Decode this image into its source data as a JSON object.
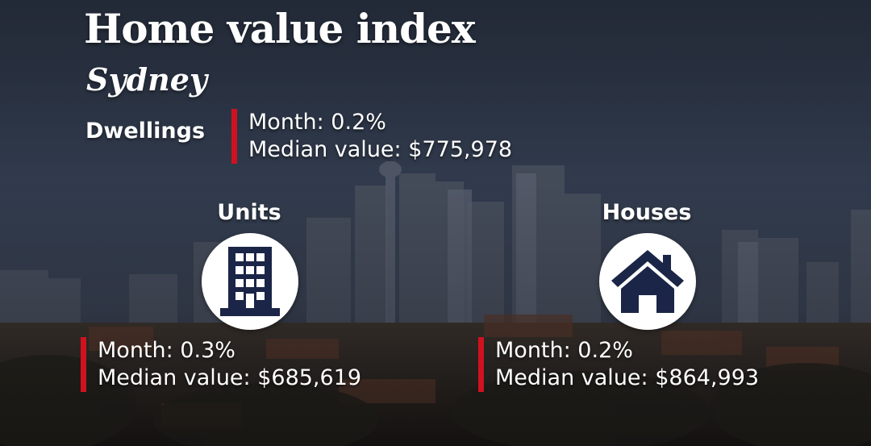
{
  "title": "Home value index",
  "subtitle": "Sydney",
  "dwellings": {
    "label": "Dwellings",
    "month": "Month: 0.2%",
    "median": "Median value: $775,978"
  },
  "units": {
    "label": "Units",
    "icon": "apartment-building-icon",
    "month": "Month: 0.3%",
    "median": "Median value: $685,619"
  },
  "houses": {
    "label": "Houses",
    "icon": "house-icon",
    "month": "Month: 0.2%",
    "median": "Median value: $864,993"
  },
  "colors": {
    "accent": "#d0121f",
    "icon": "#1b2547"
  }
}
